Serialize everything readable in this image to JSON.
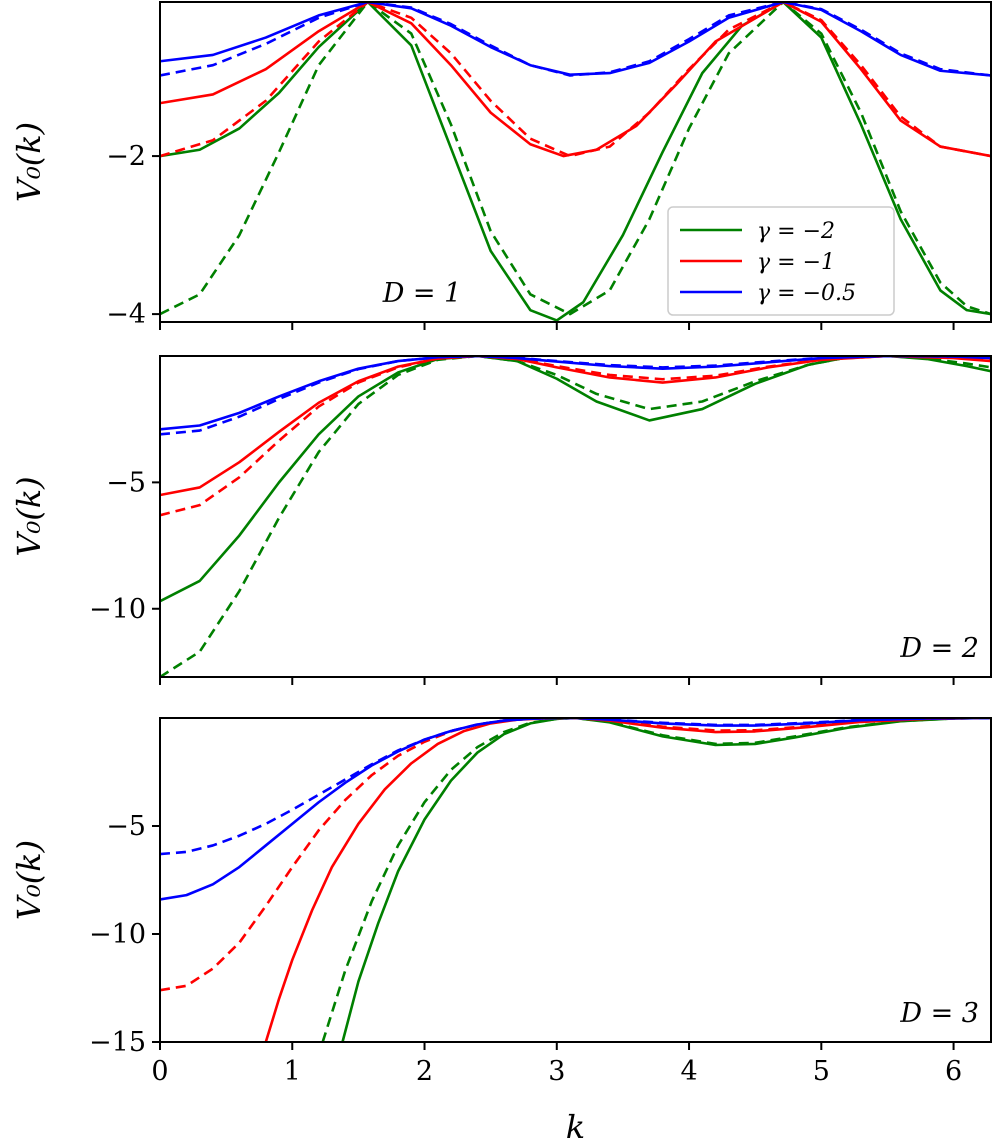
{
  "chart_data": [
    {
      "type": "line",
      "annotation": "D = 1",
      "ylabel": "V₀(k)",
      "xlim": [
        0,
        6.283
      ],
      "ylim": [
        -4.1,
        -0.05
      ],
      "yticks": [
        -4,
        -2
      ],
      "ytick_labels": [
        "−4",
        "−2"
      ],
      "legend": {
        "placement": "lower-right",
        "entries": [
          {
            "label": "γ = −2",
            "color": "#008000"
          },
          {
            "label": "γ = −1",
            "color": "#ff0000"
          },
          {
            "label": "γ = −0.5",
            "color": "#0000ff"
          }
        ]
      },
      "series": [
        {
          "gamma": -2,
          "style": "solid",
          "color": "#008000",
          "x": [
            0,
            0.3,
            0.6,
            0.9,
            1.2,
            1.571,
            1.9,
            2.2,
            2.5,
            2.8,
            3.0,
            3.2,
            3.5,
            3.8,
            4.1,
            4.4,
            4.712,
            5.0,
            5.3,
            5.6,
            5.9,
            6.1,
            6.283
          ],
          "y": [
            -2.0,
            -1.92,
            -1.65,
            -1.2,
            -0.62,
            -0.05,
            -0.6,
            -1.9,
            -3.2,
            -3.95,
            -4.08,
            -3.85,
            -3.0,
            -1.95,
            -0.95,
            -0.35,
            -0.05,
            -0.5,
            -1.6,
            -2.8,
            -3.7,
            -3.95,
            -4.0
          ]
        },
        {
          "gamma": -2,
          "style": "dashed",
          "color": "#008000",
          "x": [
            0,
            0.3,
            0.6,
            0.9,
            1.2,
            1.571,
            1.9,
            2.2,
            2.5,
            2.8,
            3.1,
            3.4,
            3.7,
            4.0,
            4.3,
            4.712,
            5.0,
            5.3,
            5.6,
            5.9,
            6.1,
            6.283
          ],
          "y": [
            -4.0,
            -3.75,
            -3.0,
            -1.95,
            -0.85,
            -0.05,
            -0.45,
            -1.6,
            -2.95,
            -3.75,
            -4.0,
            -3.7,
            -2.8,
            -1.65,
            -0.7,
            -0.05,
            -0.45,
            -1.45,
            -2.7,
            -3.6,
            -3.9,
            -4.0
          ]
        },
        {
          "gamma": -1,
          "style": "solid",
          "color": "#ff0000",
          "x": [
            0,
            0.4,
            0.8,
            1.2,
            1.571,
            1.9,
            2.2,
            2.5,
            2.8,
            3.05,
            3.3,
            3.6,
            3.9,
            4.2,
            4.712,
            5.0,
            5.3,
            5.6,
            5.9,
            6.283
          ],
          "y": [
            -1.33,
            -1.22,
            -0.9,
            -0.42,
            -0.05,
            -0.32,
            -0.85,
            -1.45,
            -1.85,
            -2.0,
            -1.92,
            -1.62,
            -1.1,
            -0.55,
            -0.05,
            -0.3,
            -0.9,
            -1.55,
            -1.88,
            -2.0
          ]
        },
        {
          "gamma": -1,
          "style": "dashed",
          "color": "#ff0000",
          "x": [
            0,
            0.4,
            0.8,
            1.2,
            1.571,
            1.9,
            2.2,
            2.5,
            2.8,
            3.1,
            3.4,
            3.7,
            4.0,
            4.3,
            4.712,
            5.0,
            5.3,
            5.6,
            5.9,
            6.283
          ],
          "y": [
            -2.0,
            -1.8,
            -1.3,
            -0.55,
            -0.05,
            -0.25,
            -0.7,
            -1.3,
            -1.78,
            -2.0,
            -1.88,
            -1.45,
            -0.9,
            -0.4,
            -0.05,
            -0.28,
            -0.85,
            -1.5,
            -1.88,
            -2.0
          ]
        },
        {
          "gamma": -0.5,
          "style": "solid",
          "color": "#0000ff",
          "x": [
            0,
            0.4,
            0.8,
            1.2,
            1.571,
            1.9,
            2.2,
            2.5,
            2.8,
            3.1,
            3.4,
            3.7,
            4.0,
            4.3,
            4.712,
            5.0,
            5.3,
            5.6,
            5.9,
            6.283
          ],
          "y": [
            -0.8,
            -0.72,
            -0.5,
            -0.22,
            -0.05,
            -0.13,
            -0.35,
            -0.62,
            -0.85,
            -0.97,
            -0.95,
            -0.82,
            -0.55,
            -0.25,
            -0.05,
            -0.15,
            -0.42,
            -0.72,
            -0.92,
            -0.98
          ]
        },
        {
          "gamma": -0.5,
          "style": "dashed",
          "color": "#0000ff",
          "x": [
            0,
            0.4,
            0.8,
            1.2,
            1.571,
            1.9,
            2.2,
            2.5,
            2.8,
            3.1,
            3.4,
            3.7,
            4.0,
            4.3,
            4.712,
            5.0,
            5.3,
            5.6,
            5.9,
            6.283
          ],
          "y": [
            -0.98,
            -0.85,
            -0.58,
            -0.25,
            -0.05,
            -0.12,
            -0.33,
            -0.6,
            -0.85,
            -0.98,
            -0.94,
            -0.8,
            -0.52,
            -0.22,
            -0.05,
            -0.14,
            -0.4,
            -0.7,
            -0.9,
            -0.98
          ]
        }
      ]
    },
    {
      "type": "line",
      "annotation": "D = 2",
      "ylabel": "V₀(k)",
      "xlim": [
        0,
        6.283
      ],
      "ylim": [
        -12.7,
        0
      ],
      "yticks": [
        -10,
        -5
      ],
      "ytick_labels": [
        "−10",
        "−5"
      ],
      "series": [
        {
          "gamma": -2,
          "style": "solid",
          "color": "#008000",
          "x": [
            0,
            0.3,
            0.6,
            0.9,
            1.2,
            1.5,
            1.8,
            2.1,
            2.4,
            2.7,
            3.0,
            3.3,
            3.7,
            4.1,
            4.5,
            4.9,
            5.2,
            5.5,
            5.8,
            6.1,
            6.283
          ],
          "y": [
            -9.7,
            -8.9,
            -7.1,
            -5.0,
            -3.1,
            -1.6,
            -0.65,
            -0.12,
            0,
            -0.2,
            -0.9,
            -1.8,
            -2.55,
            -2.1,
            -1.1,
            -0.35,
            -0.05,
            0,
            -0.12,
            -0.4,
            -0.6
          ]
        },
        {
          "gamma": -2,
          "style": "dashed",
          "color": "#008000",
          "x": [
            0,
            0.3,
            0.6,
            0.9,
            1.2,
            1.5,
            1.8,
            2.1,
            2.4,
            2.7,
            3.0,
            3.3,
            3.7,
            4.1,
            4.5,
            4.9,
            5.2,
            5.5,
            5.8,
            6.1,
            6.283
          ],
          "y": [
            -12.7,
            -11.7,
            -9.3,
            -6.4,
            -3.8,
            -1.9,
            -0.75,
            -0.15,
            0,
            -0.2,
            -0.75,
            -1.5,
            -2.1,
            -1.8,
            -1.0,
            -0.35,
            -0.05,
            0,
            -0.1,
            -0.3,
            -0.45
          ]
        },
        {
          "gamma": -1,
          "style": "solid",
          "color": "#ff0000",
          "x": [
            0,
            0.3,
            0.6,
            0.9,
            1.2,
            1.5,
            1.8,
            2.1,
            2.4,
            2.7,
            3.0,
            3.4,
            3.8,
            4.2,
            4.6,
            5.0,
            5.5,
            6.0,
            6.283
          ],
          "y": [
            -5.5,
            -5.2,
            -4.2,
            -3.0,
            -1.85,
            -1.0,
            -0.42,
            -0.1,
            0,
            -0.12,
            -0.45,
            -0.85,
            -1.05,
            -0.85,
            -0.45,
            -0.15,
            0,
            -0.08,
            -0.2
          ]
        },
        {
          "gamma": -1,
          "style": "dashed",
          "color": "#ff0000",
          "x": [
            0,
            0.3,
            0.6,
            0.9,
            1.2,
            1.5,
            1.8,
            2.1,
            2.4,
            2.7,
            3.0,
            3.4,
            3.8,
            4.2,
            4.6,
            5.0,
            5.5,
            6.0,
            6.283
          ],
          "y": [
            -6.3,
            -5.9,
            -4.8,
            -3.35,
            -2.0,
            -1.05,
            -0.45,
            -0.1,
            0,
            -0.1,
            -0.4,
            -0.75,
            -0.92,
            -0.78,
            -0.42,
            -0.14,
            0,
            -0.06,
            -0.15
          ]
        },
        {
          "gamma": -0.5,
          "style": "solid",
          "color": "#0000ff",
          "x": [
            0,
            0.3,
            0.6,
            0.9,
            1.2,
            1.5,
            1.8,
            2.1,
            2.4,
            2.7,
            3.0,
            3.4,
            3.8,
            4.2,
            4.6,
            5.0,
            5.5,
            6.0,
            6.283
          ],
          "y": [
            -2.9,
            -2.75,
            -2.25,
            -1.6,
            -1.0,
            -0.5,
            -0.2,
            -0.05,
            0,
            -0.08,
            -0.22,
            -0.4,
            -0.5,
            -0.42,
            -0.25,
            -0.08,
            0,
            -0.02,
            -0.08
          ]
        },
        {
          "gamma": -0.5,
          "style": "dashed",
          "color": "#0000ff",
          "x": [
            0,
            0.3,
            0.6,
            0.9,
            1.2,
            1.5,
            1.8,
            2.1,
            2.4,
            2.7,
            3.0,
            3.4,
            3.8,
            4.2,
            4.6,
            5.0,
            5.5,
            6.0,
            6.283
          ],
          "y": [
            -3.1,
            -2.95,
            -2.4,
            -1.7,
            -1.05,
            -0.52,
            -0.2,
            -0.05,
            0,
            -0.07,
            -0.2,
            -0.36,
            -0.45,
            -0.38,
            -0.22,
            -0.07,
            0,
            -0.02,
            -0.06
          ]
        }
      ]
    },
    {
      "type": "line",
      "annotation": "D = 3",
      "ylabel": "V₀(k)",
      "xlabel": "k",
      "xlim": [
        0,
        6.283
      ],
      "ylim": [
        -15,
        0
      ],
      "yticks": [
        -15,
        -10,
        -5
      ],
      "ytick_labels": [
        "−15",
        "−10",
        "−5"
      ],
      "xticks": [
        0,
        1,
        2,
        3,
        4,
        5,
        6
      ],
      "xtick_labels": [
        "0",
        "1",
        "2",
        "3",
        "4",
        "5",
        "6"
      ],
      "series": [
        {
          "gamma": -2,
          "style": "solid",
          "color": "#008000",
          "x": [
            1.38,
            1.5,
            1.65,
            1.8,
            2.0,
            2.2,
            2.4,
            2.6,
            2.8,
            3.0,
            3.14,
            3.4,
            3.8,
            4.2,
            4.5,
            4.8,
            5.2,
            5.6,
            6.0,
            6.283
          ],
          "y": [
            -15.0,
            -12.2,
            -9.5,
            -7.1,
            -4.7,
            -2.9,
            -1.6,
            -0.75,
            -0.25,
            -0.04,
            0,
            -0.2,
            -0.85,
            -1.25,
            -1.2,
            -0.9,
            -0.45,
            -0.15,
            -0.02,
            0
          ]
        },
        {
          "gamma": -2,
          "style": "dashed",
          "color": "#008000",
          "x": [
            1.23,
            1.4,
            1.6,
            1.8,
            2.0,
            2.2,
            2.4,
            2.6,
            2.8,
            3.0,
            3.14,
            3.4,
            3.8,
            4.2,
            4.5,
            4.8,
            5.2,
            5.6,
            6.0,
            6.283
          ],
          "y": [
            -15.0,
            -11.7,
            -8.5,
            -5.9,
            -3.9,
            -2.4,
            -1.35,
            -0.65,
            -0.22,
            -0.04,
            0,
            -0.18,
            -0.8,
            -1.2,
            -1.15,
            -0.85,
            -0.42,
            -0.14,
            -0.02,
            0
          ]
        },
        {
          "gamma": -1,
          "style": "solid",
          "color": "#ff0000",
          "x": [
            0.8,
            0.9,
            1.0,
            1.15,
            1.3,
            1.5,
            1.7,
            1.9,
            2.1,
            2.3,
            2.5,
            2.7,
            2.9,
            3.14,
            3.4,
            3.8,
            4.2,
            4.5,
            4.9,
            5.3,
            5.8,
            6.283
          ],
          "y": [
            -15.0,
            -13.0,
            -11.2,
            -8.9,
            -6.9,
            -4.9,
            -3.3,
            -2.1,
            -1.2,
            -0.6,
            -0.25,
            -0.08,
            -0.02,
            0,
            -0.12,
            -0.45,
            -0.65,
            -0.62,
            -0.42,
            -0.18,
            -0.04,
            0
          ]
        },
        {
          "gamma": -1,
          "style": "dashed",
          "color": "#ff0000",
          "x": [
            0,
            0.2,
            0.4,
            0.6,
            0.8,
            1.0,
            1.2,
            1.4,
            1.6,
            1.8,
            2.0,
            2.2,
            2.4,
            2.6,
            2.8,
            3.0,
            3.14,
            3.4,
            3.8,
            4.2,
            4.5,
            4.9,
            5.3,
            5.8,
            6.283
          ],
          "y": [
            -12.6,
            -12.4,
            -11.6,
            -10.4,
            -8.7,
            -6.9,
            -5.2,
            -3.8,
            -2.65,
            -1.75,
            -1.1,
            -0.62,
            -0.3,
            -0.12,
            -0.03,
            0,
            0,
            -0.1,
            -0.4,
            -0.58,
            -0.57,
            -0.38,
            -0.16,
            -0.03,
            0
          ]
        },
        {
          "gamma": -0.5,
          "style": "solid",
          "color": "#0000ff",
          "x": [
            0,
            0.2,
            0.4,
            0.6,
            0.8,
            1.0,
            1.2,
            1.4,
            1.6,
            1.8,
            2.0,
            2.2,
            2.4,
            2.6,
            2.8,
            3.0,
            3.14,
            3.4,
            3.8,
            4.2,
            4.5,
            4.9,
            5.3,
            5.8,
            6.283
          ],
          "y": [
            -8.4,
            -8.2,
            -7.7,
            -6.9,
            -5.9,
            -4.9,
            -3.9,
            -3.0,
            -2.2,
            -1.55,
            -1.0,
            -0.6,
            -0.3,
            -0.12,
            -0.03,
            0,
            0,
            -0.08,
            -0.25,
            -0.35,
            -0.35,
            -0.25,
            -0.1,
            -0.02,
            0
          ]
        },
        {
          "gamma": -0.5,
          "style": "dashed",
          "color": "#0000ff",
          "x": [
            0,
            0.2,
            0.4,
            0.6,
            0.8,
            1.0,
            1.2,
            1.4,
            1.6,
            1.8,
            2.0,
            2.2,
            2.4,
            2.6,
            2.8,
            3.0,
            3.14,
            3.4,
            3.8,
            4.2,
            4.5,
            4.9,
            5.3,
            5.8,
            6.283
          ],
          "y": [
            -6.3,
            -6.2,
            -5.9,
            -5.45,
            -4.9,
            -4.25,
            -3.55,
            -2.85,
            -2.15,
            -1.5,
            -1.0,
            -0.6,
            -0.3,
            -0.12,
            -0.03,
            0,
            0,
            -0.07,
            -0.22,
            -0.32,
            -0.32,
            -0.22,
            -0.09,
            -0.02,
            0
          ]
        }
      ]
    }
  ]
}
